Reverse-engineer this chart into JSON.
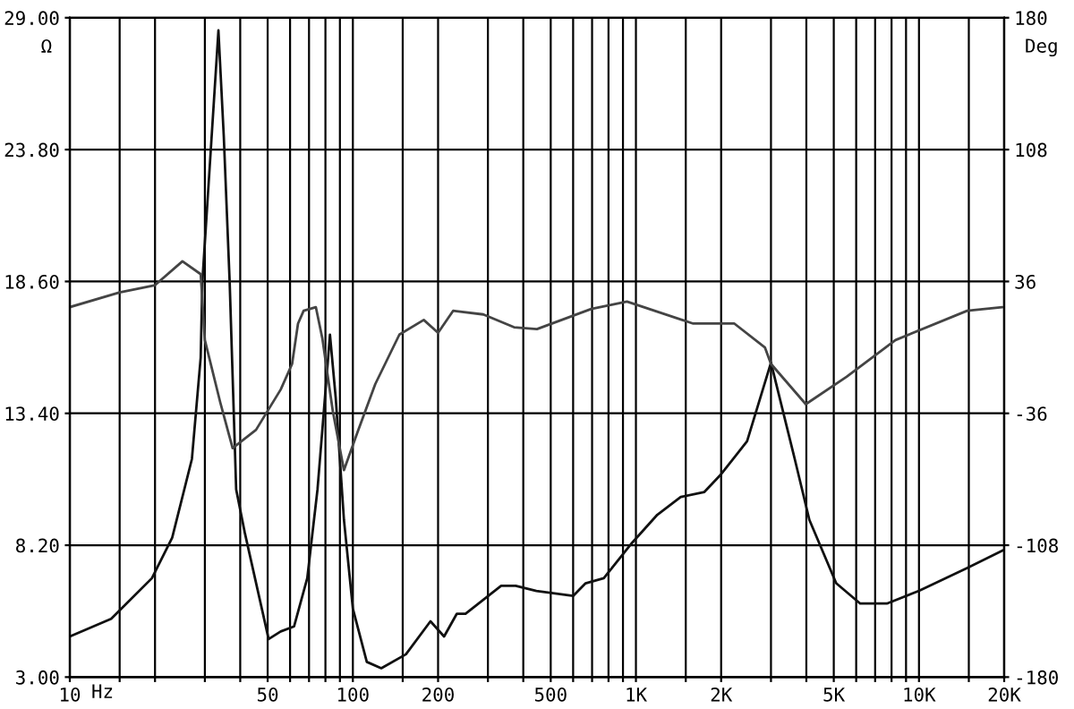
{
  "chart_data": {
    "type": "line",
    "xlabel": "Hz",
    "ylabel": "Ω",
    "y2label": "Deg",
    "log": "x",
    "grid": true,
    "legend": false,
    "marker": "none",
    "line_style": "solid",
    "xlim": [
      10,
      20000
    ],
    "xticks": [
      10,
      {
        "value": 15,
        "label": null
      },
      {
        "value": 20,
        "label": null
      },
      {
        "value": 30,
        "label": null
      },
      {
        "value": 40,
        "label": null
      },
      50,
      {
        "value": 60,
        "label": null
      },
      {
        "value": 70,
        "label": null
      },
      {
        "value": 80,
        "label": null
      },
      {
        "value": 90,
        "label": null
      },
      100,
      {
        "value": 150,
        "label": null
      },
      200,
      {
        "value": 300,
        "label": null
      },
      {
        "value": 400,
        "label": null
      },
      500,
      {
        "value": 600,
        "label": null
      },
      {
        "value": 700,
        "label": null
      },
      {
        "value": 800,
        "label": null
      },
      {
        "value": 900,
        "label": null
      },
      {
        "value": 1000,
        "label": "1K"
      },
      {
        "value": 1500,
        "label": null
      },
      {
        "value": 2000,
        "label": "2K"
      },
      {
        "value": 3000,
        "label": null
      },
      {
        "value": 4000,
        "label": null
      },
      {
        "value": 5000,
        "label": "5K"
      },
      {
        "value": 6000,
        "label": null
      },
      {
        "value": 7000,
        "label": null
      },
      {
        "value": 8000,
        "label": null
      },
      {
        "value": 9000,
        "label": null
      },
      {
        "value": 10000,
        "label": "10K"
      },
      {
        "value": 15000,
        "label": null
      },
      {
        "value": 20000,
        "label": "20K"
      }
    ],
    "ylim": [
      3,
      29
    ],
    "yticks": [
      {
        "value": 3,
        "label": "3.00"
      },
      {
        "value": 8.2,
        "label": "8.20"
      },
      {
        "value": 13.4,
        "label": "13.40"
      },
      {
        "value": 18.6,
        "label": "18.60"
      },
      {
        "value": 23.8,
        "label": "23.80"
      },
      {
        "value": 29,
        "label": "29.00"
      }
    ],
    "y2lim": [
      -180,
      180
    ],
    "y2ticks": [
      -180,
      -108,
      -36,
      36,
      108,
      180
    ],
    "series": [
      {
        "color": "#111111",
        "x": [
          10,
          14,
          19.5,
          23,
          27,
          29,
          29.4,
          33.5,
          35,
          36.7,
          38.7,
          41.5,
          50.4,
          55.6,
          62,
          69,
          75,
          79,
          83,
          87,
          93,
          100,
          112,
          126,
          154,
          188,
          210,
          233,
          250,
          334,
          376,
          445,
          600,
          664,
          770,
          970,
          1190,
          1440,
          1745,
          2000,
          2470,
          3000,
          3640,
          4100,
          5100,
          6200,
          7700,
          10000,
          14800,
          19800
        ],
        "values": [
          4.6,
          5.3,
          6.9,
          8.5,
          11.6,
          15.6,
          18.6,
          28.5,
          24.3,
          18.6,
          10.4,
          8.7,
          4.5,
          4.8,
          5.0,
          6.9,
          10.4,
          13.5,
          16.5,
          14.0,
          9.2,
          5.7,
          3.6,
          3.35,
          3.9,
          5.2,
          4.6,
          5.5,
          5.5,
          6.6,
          6.6,
          6.4,
          6.2,
          6.7,
          6.9,
          8.3,
          9.4,
          10.1,
          10.3,
          11.0,
          12.3,
          15.4,
          11.6,
          9.2,
          6.7,
          5.9,
          5.9,
          6.4,
          7.3,
          8.0
        ]
      },
      {
        "color": "#444444",
        "axis": "y2",
        "x": [
          10,
          15,
          20,
          25,
          29,
          30,
          34,
          37.6,
          45.5,
          55.6,
          61,
          64,
          67,
          74,
          78,
          85,
          93,
          104,
          120,
          146,
          178,
          200,
          226,
          289,
          371,
          447,
          695,
          930,
          1594,
          2228,
          2855,
          3000,
          3982,
          5550,
          8260,
          14800,
          19700
        ],
        "values": [
          22,
          30,
          34,
          47,
          40,
          4,
          -30,
          -55,
          -45,
          -23,
          -9,
          13,
          20,
          22,
          5,
          -35,
          -67,
          -46,
          -20,
          7,
          15,
          8,
          20,
          18,
          11,
          10,
          21,
          25,
          13,
          13,
          0,
          -9,
          -31,
          -16,
          4,
          20,
          22
        ]
      }
    ]
  }
}
